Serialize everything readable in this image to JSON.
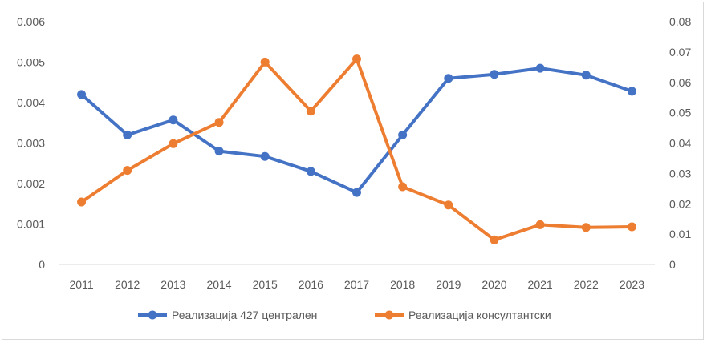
{
  "chart_data": {
    "type": "line",
    "title": "",
    "xlabel": "",
    "ylabel": "",
    "categories": [
      "2011",
      "2012",
      "2013",
      "2014",
      "2015",
      "2016",
      "2017",
      "2018",
      "2019",
      "2020",
      "2021",
      "2022",
      "2023"
    ],
    "y_left": {
      "min": 0,
      "max": 0.006,
      "ticks": [
        "0",
        "0.001",
        "0.002",
        "0.003",
        "0.004",
        "0.005",
        "0.006"
      ]
    },
    "y_right": {
      "min": 0,
      "max": 0.08,
      "ticks": [
        "0",
        "0.01",
        "0.02",
        "0.03",
        "0.04",
        "0.05",
        "0.06",
        "0.07",
        "0.08"
      ]
    },
    "grid": false,
    "legend_position": "bottom",
    "series": [
      {
        "name": "Реализација 427 централен",
        "axis": "left",
        "color": "#4472c4",
        "values": [
          0.0042,
          0.0032,
          0.00357,
          0.0028,
          0.00267,
          0.0023,
          0.00178,
          0.0032,
          0.0046,
          0.0047,
          0.00485,
          0.00468,
          0.00428
        ]
      },
      {
        "name": "Реализација консултантски",
        "axis": "right",
        "color": "#ed7d31",
        "values": [
          0.0206,
          0.031,
          0.0398,
          0.0468,
          0.0667,
          0.0505,
          0.0677,
          0.0256,
          0.0196,
          0.0081,
          0.0131,
          0.0122,
          0.0124
        ]
      }
    ]
  }
}
